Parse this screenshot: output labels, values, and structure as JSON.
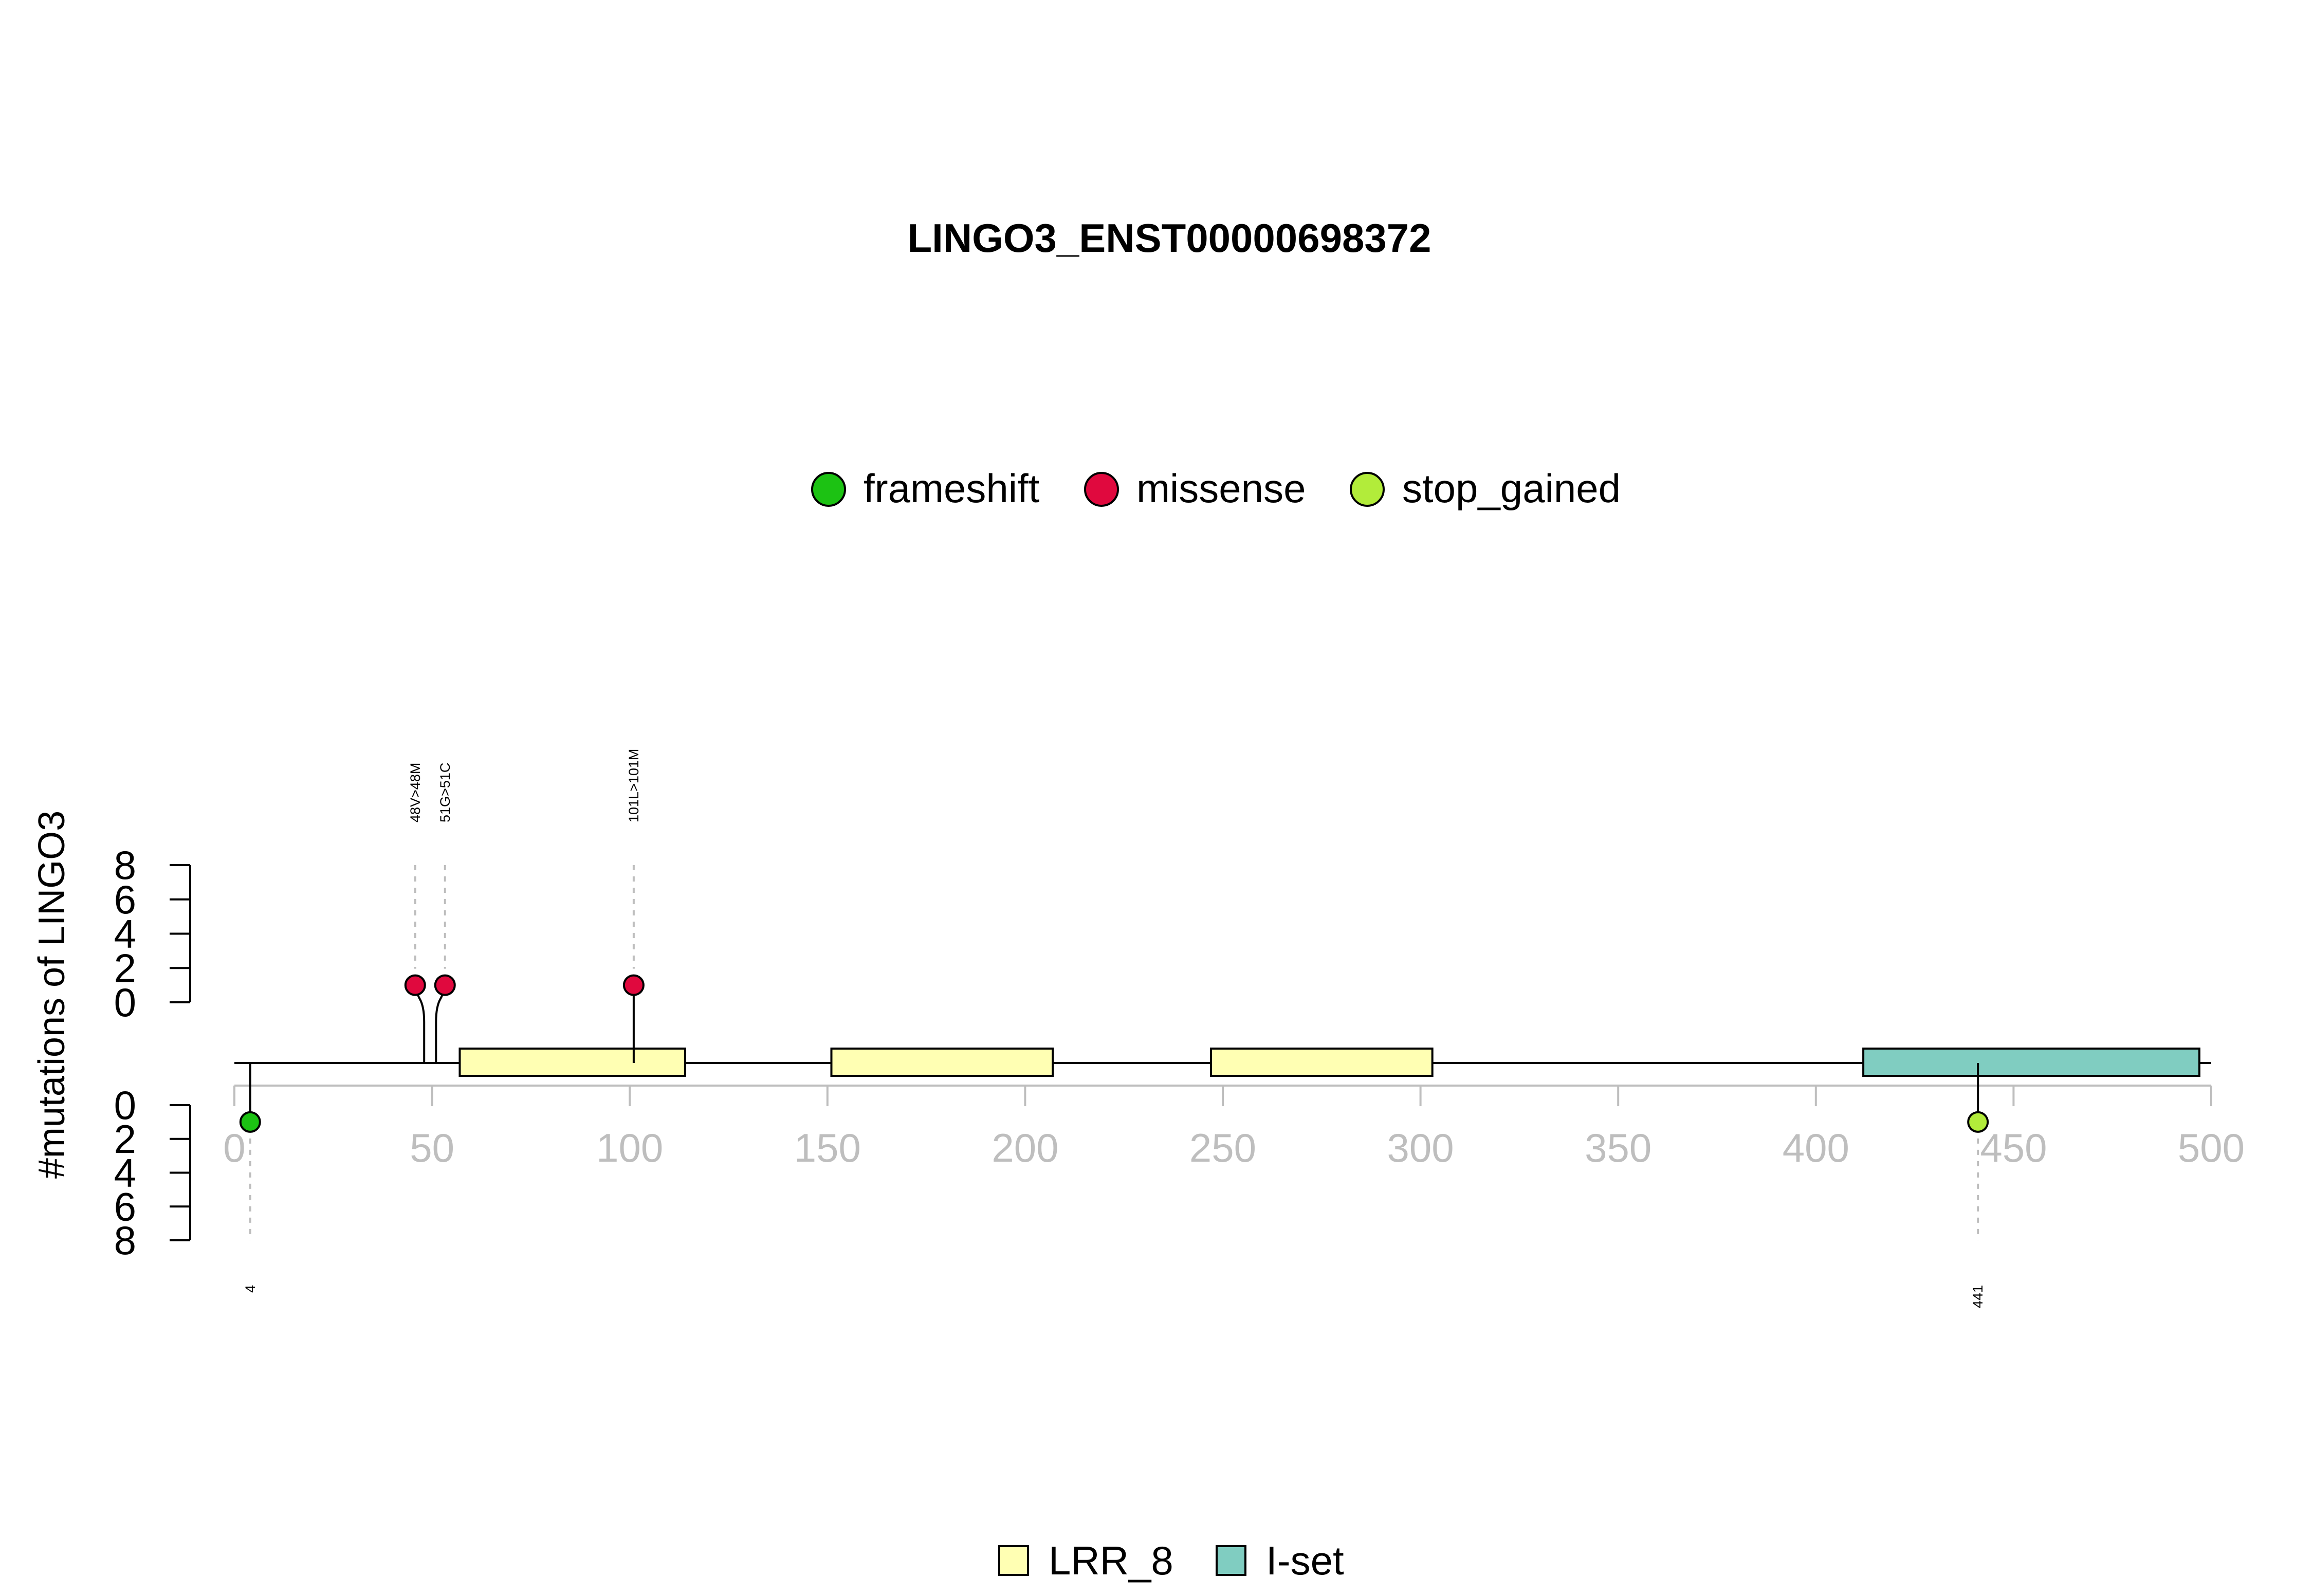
{
  "chart_data": {
    "type": "lollipop",
    "title": "LINGO3_ENST00000698372",
    "ylabel": "#mutations of LINGO3",
    "x_range": [
      0,
      500
    ],
    "x_ticks": [
      0,
      50,
      100,
      150,
      200,
      250,
      300,
      350,
      400,
      450,
      500
    ],
    "y_range_top": [
      0,
      8
    ],
    "y_ticks_top": [
      0,
      2,
      4,
      6,
      8
    ],
    "y_range_bottom": [
      0,
      8
    ],
    "y_ticks_bottom": [
      0,
      2,
      4,
      6,
      8
    ],
    "mutation_legend": [
      {
        "name": "frameshift",
        "color": "#1CC213"
      },
      {
        "name": "missense",
        "color": "#E0093E"
      },
      {
        "name": "stop_gained",
        "color": "#B2EC3A"
      }
    ],
    "domain_legend": [
      {
        "name": "LRR_8",
        "color": "#FFFFB3"
      },
      {
        "name": "I-set",
        "color": "#80CDC1"
      }
    ],
    "domains": [
      {
        "name": "LRR_8",
        "start": 57,
        "end": 114
      },
      {
        "name": "LRR_8",
        "start": 151,
        "end": 207
      },
      {
        "name": "LRR_8",
        "start": 247,
        "end": 303
      },
      {
        "name": "I-set",
        "start": 412,
        "end": 497
      }
    ],
    "mutations_top": [
      {
        "position": 48,
        "count": 1,
        "type": "missense",
        "label": "48V>48M"
      },
      {
        "position": 51,
        "count": 1,
        "type": "missense",
        "label": "51G>51C"
      },
      {
        "position": 101,
        "count": 1,
        "type": "missense",
        "label": "101L>101M"
      }
    ],
    "mutations_bottom": [
      {
        "position": 4,
        "count": 1,
        "type": "frameshift",
        "label": "4"
      },
      {
        "position": 441,
        "count": 1,
        "type": "stop_gained",
        "label": "441"
      }
    ]
  }
}
